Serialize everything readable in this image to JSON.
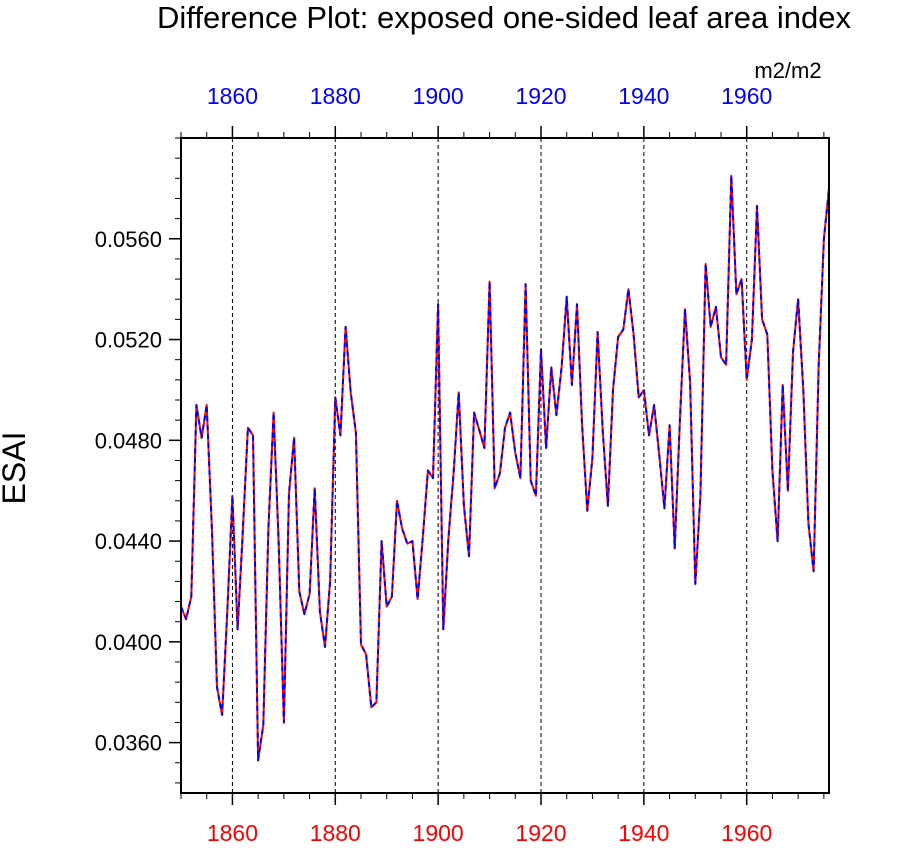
{
  "chart_data": {
    "type": "line",
    "title": "Difference Plot: exposed one-sided leaf area index",
    "units": "m2/m2",
    "ylabel": "ESAI",
    "xlabel": "",
    "xlim": [
      1850,
      1976
    ],
    "ylim": [
      0.034,
      0.06
    ],
    "yticks": [
      "0.0360",
      "0.0400",
      "0.0440",
      "0.0480",
      "0.0520",
      "0.0560"
    ],
    "ytick_values": [
      0.036,
      0.04,
      0.044,
      0.048,
      0.052,
      0.056
    ],
    "xticks": [
      "1860",
      "1880",
      "1900",
      "1920",
      "1940",
      "1960"
    ],
    "xtick_values": [
      1860,
      1880,
      1900,
      1920,
      1940,
      1960
    ],
    "top_axis_color": "#0000ff",
    "bottom_axis_color": "#ff0000",
    "grid": "vertical dashed at major x ticks",
    "series": [
      {
        "name": "red",
        "color": "#ff0000",
        "style": "solid"
      },
      {
        "name": "blue",
        "color": "#0000ff",
        "style": "dashed"
      }
    ],
    "x": [
      1850,
      1851,
      1852,
      1853,
      1854,
      1855,
      1856,
      1857,
      1858,
      1859,
      1860,
      1861,
      1862,
      1863,
      1864,
      1865,
      1866,
      1867,
      1868,
      1869,
      1870,
      1871,
      1872,
      1873,
      1874,
      1875,
      1876,
      1877,
      1878,
      1879,
      1880,
      1881,
      1882,
      1883,
      1884,
      1885,
      1886,
      1887,
      1888,
      1889,
      1890,
      1891,
      1892,
      1893,
      1894,
      1895,
      1896,
      1897,
      1898,
      1899,
      1900,
      1901,
      1902,
      1903,
      1904,
      1905,
      1906,
      1907,
      1908,
      1909,
      1910,
      1911,
      1912,
      1913,
      1914,
      1915,
      1916,
      1917,
      1918,
      1919,
      1920,
      1921,
      1922,
      1923,
      1924,
      1925,
      1926,
      1927,
      1928,
      1929,
      1930,
      1931,
      1932,
      1933,
      1934,
      1935,
      1936,
      1937,
      1938,
      1939,
      1940,
      1941,
      1942,
      1943,
      1944,
      1945,
      1946,
      1947,
      1948,
      1949,
      1950,
      1951,
      1952,
      1953,
      1954,
      1955,
      1956,
      1957,
      1958,
      1959,
      1960,
      1961,
      1962,
      1963,
      1964,
      1965,
      1966,
      1967,
      1968,
      1969,
      1970,
      1971,
      1972,
      1973,
      1974,
      1975,
      1976
    ],
    "values": [
      0.0414,
      0.0409,
      0.0418,
      0.0494,
      0.0481,
      0.0494,
      0.0445,
      0.0382,
      0.0371,
      0.0412,
      0.0458,
      0.0405,
      0.0443,
      0.0485,
      0.0482,
      0.0353,
      0.0367,
      0.0445,
      0.0491,
      0.0439,
      0.0368,
      0.0459,
      0.0481,
      0.042,
      0.0411,
      0.0419,
      0.0461,
      0.0412,
      0.0398,
      0.0424,
      0.0497,
      0.0482,
      0.0525,
      0.0499,
      0.0483,
      0.0399,
      0.0395,
      0.0374,
      0.0376,
      0.044,
      0.0414,
      0.0418,
      0.0456,
      0.0445,
      0.0439,
      0.044,
      0.0417,
      0.0441,
      0.0468,
      0.0465,
      0.0534,
      0.0405,
      0.0441,
      0.0467,
      0.0499,
      0.0454,
      0.0434,
      0.0491,
      0.0484,
      0.0477,
      0.0543,
      0.0461,
      0.0467,
      0.0485,
      0.0491,
      0.0475,
      0.0465,
      0.0542,
      0.0464,
      0.0458,
      0.0516,
      0.0477,
      0.0509,
      0.049,
      0.0509,
      0.0537,
      0.0502,
      0.0534,
      0.0486,
      0.0452,
      0.0473,
      0.0523,
      0.0484,
      0.0454,
      0.05,
      0.0521,
      0.0524,
      0.054,
      0.0522,
      0.0497,
      0.05,
      0.0482,
      0.0494,
      0.0474,
      0.0453,
      0.0486,
      0.0437,
      0.0488,
      0.0532,
      0.0503,
      0.0423,
      0.0458,
      0.055,
      0.0525,
      0.0533,
      0.0513,
      0.051,
      0.0585,
      0.0538,
      0.0544,
      0.0504,
      0.052,
      0.0573,
      0.0528,
      0.0522,
      0.0468,
      0.044,
      0.0502,
      0.046,
      0.0515,
      0.0536,
      0.05,
      0.0447,
      0.0428,
      0.051,
      0.056,
      0.058
    ]
  }
}
